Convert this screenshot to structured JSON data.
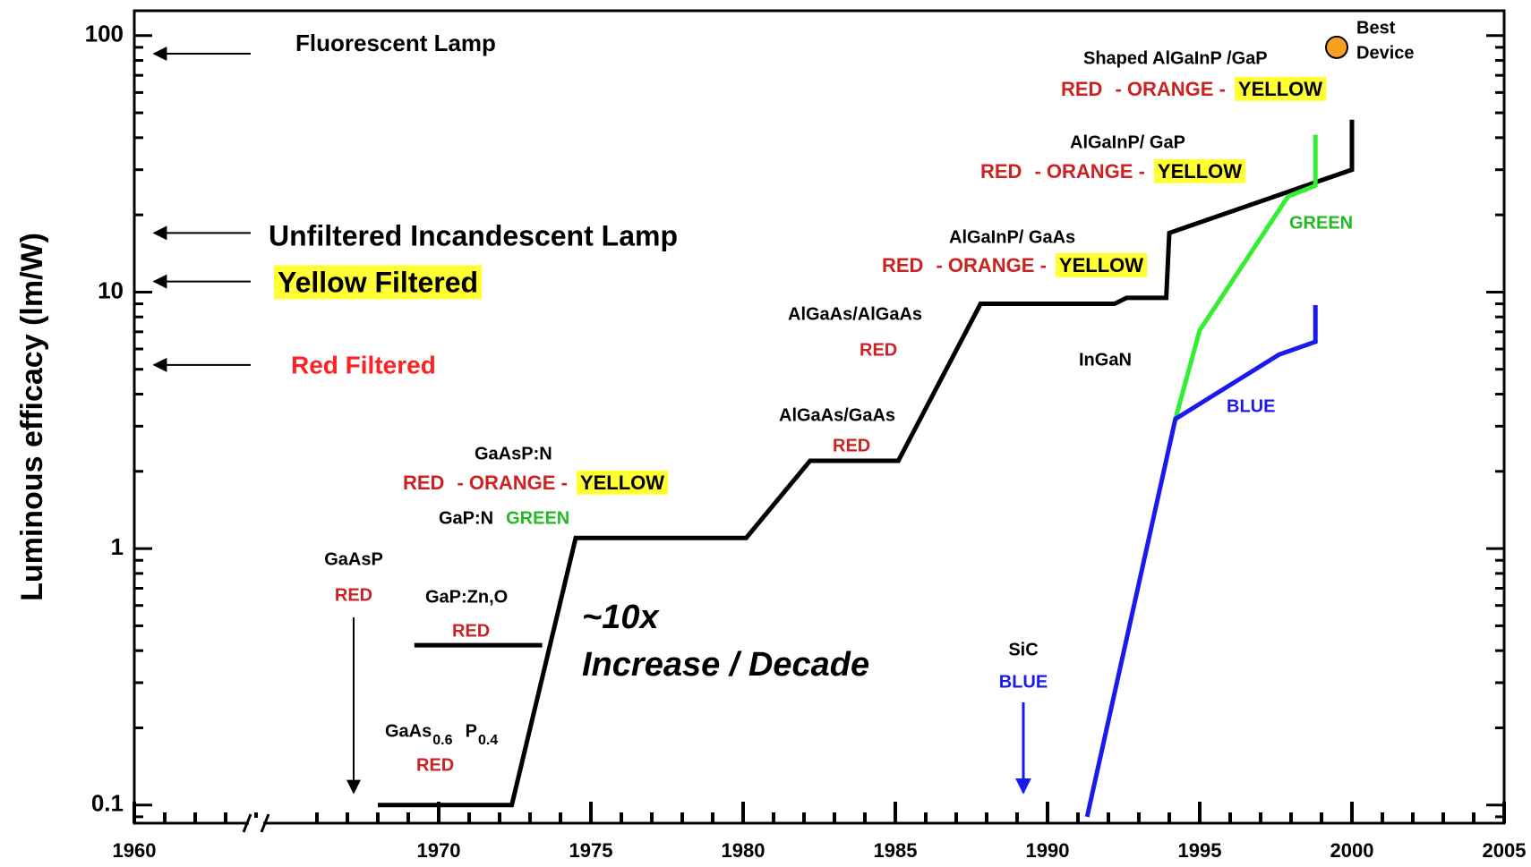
{
  "chart_data": {
    "type": "line",
    "y_label": "Luminous efficacy (lm/W)",
    "log_y": true,
    "grid": false,
    "xlim": [
      1960,
      2005
    ],
    "xticks": [
      1960,
      1970,
      1975,
      1980,
      1985,
      1990,
      1995,
      2000,
      2005
    ],
    "ylim": [
      0.085,
      125
    ],
    "yticks": [
      0.1,
      1,
      10,
      100
    ],
    "series": [
      {
        "color": "#000000",
        "x": [
          1968,
          1972.4,
          1974.5,
          1980.1,
          1982.2,
          1985.1,
          1987.8,
          1992.2,
          1992.6,
          1993.9,
          1994,
          2000,
          2000
        ],
        "values": [
          0.1,
          0.1,
          1.1,
          1.1,
          2.2,
          2.2,
          9,
          9,
          9.5,
          9.5,
          17,
          30,
          47
        ]
      },
      {
        "color": "#000000",
        "x": [
          1969.2,
          1973.4
        ],
        "values": [
          0.42,
          0.42
        ]
      },
      {
        "color": "#33ee33",
        "x": [
          1994.2,
          1995,
          1997.9,
          1998.8,
          1998.8
        ],
        "values": [
          3.2,
          7.1,
          23.6,
          26,
          41
        ]
      },
      {
        "color": "#1a1aee",
        "x": [
          1991.3,
          1994.2,
          1997.6,
          1998.8,
          1998.8
        ],
        "values": [
          0.09,
          3.2,
          5.7,
          6.4,
          8.9
        ]
      },
      {
        "color": "#f5a020",
        "marker": "circle",
        "x": [
          1999.5
        ],
        "values": [
          90
        ]
      }
    ],
    "reference_values": [
      85,
      17,
      11,
      5.2
    ],
    "annotations": [
      "Fluorescent Lamp",
      "Unfiltered Incandescent Lamp",
      "Yellow Filtered",
      "Red Filtered",
      "GaAsP",
      "RED",
      "GaAs",
      "0.6",
      "P",
      "0.4",
      "RED",
      "GaP:Zn,O",
      "RED",
      "~10x",
      "Increase / Decade",
      "GaP:N",
      "GREEN",
      "GaAsP:N",
      "RED",
      "- ORANGE -",
      "YELLOW",
      "AlGaAs/GaAs",
      "RED",
      "AlGaAs/AlGaAs",
      "RED",
      "AlGaInP/ GaAs",
      "RED",
      "- ORANGE -",
      "YELLOW",
      "AlGaInP/ GaP",
      "RED",
      "- ORANGE -",
      "YELLOW",
      "Shaped AlGaInP /GaP",
      "RED",
      "- ORANGE -",
      "YELLOW",
      "Best",
      "Device",
      "GREEN",
      "InGaN",
      "BLUE",
      "SiC",
      "BLUE"
    ]
  }
}
